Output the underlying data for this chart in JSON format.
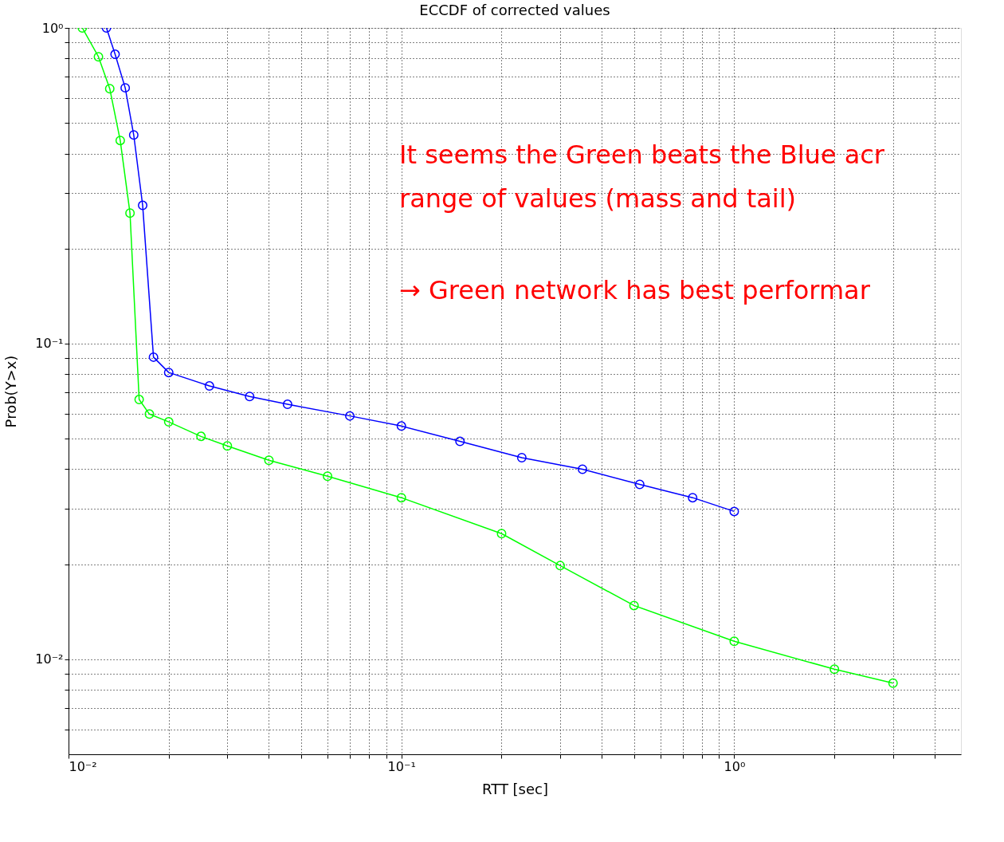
{
  "chart_data": {
    "type": "line",
    "title": "ECCDF of corrected values",
    "xlabel": "RTT [sec]",
    "ylabel": "Prob(Y>x)",
    "log": "xy",
    "grid": true,
    "marker": "circle",
    "line_style": "solid",
    "legend": false,
    "xlim": [
      0.01,
      4.8
    ],
    "ylim": [
      0.005,
      1
    ],
    "xticks": [
      {
        "value": 0.01,
        "label": "10⁻²"
      },
      {
        "value": 0.02,
        "label": null
      },
      {
        "value": 0.03,
        "label": null
      },
      {
        "value": 0.04,
        "label": null
      },
      {
        "value": 0.05,
        "label": null
      },
      {
        "value": 0.06,
        "label": null
      },
      {
        "value": 0.07,
        "label": null
      },
      {
        "value": 0.08,
        "label": null
      },
      {
        "value": 0.09,
        "label": null
      },
      {
        "value": 0.1,
        "label": "10⁻¹"
      },
      {
        "value": 0.2,
        "label": null
      },
      {
        "value": 0.3,
        "label": null
      },
      {
        "value": 0.4,
        "label": null
      },
      {
        "value": 0.5,
        "label": null
      },
      {
        "value": 0.6,
        "label": null
      },
      {
        "value": 0.7,
        "label": null
      },
      {
        "value": 0.8,
        "label": null
      },
      {
        "value": 0.9,
        "label": null
      },
      {
        "value": 1,
        "label": "10⁰"
      },
      {
        "value": 2,
        "label": null
      },
      {
        "value": 3,
        "label": null
      },
      {
        "value": 4,
        "label": null
      }
    ],
    "yticks": [
      {
        "value": 0.006,
        "label": null
      },
      {
        "value": 0.007,
        "label": null
      },
      {
        "value": 0.008,
        "label": null
      },
      {
        "value": 0.009,
        "label": null
      },
      {
        "value": 0.01,
        "label": "10⁻²"
      },
      {
        "value": 0.02,
        "label": null
      },
      {
        "value": 0.03,
        "label": null
      },
      {
        "value": 0.04,
        "label": null
      },
      {
        "value": 0.05,
        "label": null
      },
      {
        "value": 0.06,
        "label": null
      },
      {
        "value": 0.07,
        "label": null
      },
      {
        "value": 0.08,
        "label": null
      },
      {
        "value": 0.09,
        "label": null
      },
      {
        "value": 0.1,
        "label": "10⁻¹"
      },
      {
        "value": 0.2,
        "label": null
      },
      {
        "value": 0.3,
        "label": null
      },
      {
        "value": 0.4,
        "label": null
      },
      {
        "value": 0.5,
        "label": null
      },
      {
        "value": 0.6,
        "label": null
      },
      {
        "value": 0.7,
        "label": null
      },
      {
        "value": 0.8,
        "label": null
      },
      {
        "value": 0.9,
        "label": null
      },
      {
        "value": 1,
        "label": "10⁰"
      }
    ],
    "series": [
      {
        "color": "#0000ff",
        "x": [
          0.013,
          0.0138,
          0.0148,
          0.0157,
          0.0167,
          0.018,
          0.02,
          0.0265,
          0.035,
          0.0455,
          0.07,
          0.1,
          0.15,
          0.23,
          0.35,
          0.52,
          0.75,
          1.0
        ],
        "values": [
          1.0,
          0.825,
          0.646,
          0.458,
          0.274,
          0.0906,
          0.081,
          0.0734,
          0.068,
          0.0642,
          0.059,
          0.0548,
          0.049,
          0.0435,
          0.04,
          0.0358,
          0.0325,
          0.0294
        ]
      },
      {
        "color": "#00ff00",
        "x": [
          0.011,
          0.0123,
          0.0133,
          0.0143,
          0.0153,
          0.0163,
          0.0175,
          0.02,
          0.025,
          0.03,
          0.04,
          0.06,
          0.1,
          0.2,
          0.3,
          0.5,
          1.0,
          2.0,
          3.0
        ],
        "values": [
          1.0,
          0.81,
          0.642,
          0.44,
          0.259,
          0.0665,
          0.0598,
          0.0565,
          0.0508,
          0.0474,
          0.0427,
          0.038,
          0.0325,
          0.025,
          0.0198,
          0.0148,
          0.0114,
          0.0093,
          0.0084
        ]
      }
    ],
    "annotations": [
      "It seems the Green beats the Blue acr",
      "range of values (mass and tail)",
      "→ Green network has best performar"
    ]
  }
}
